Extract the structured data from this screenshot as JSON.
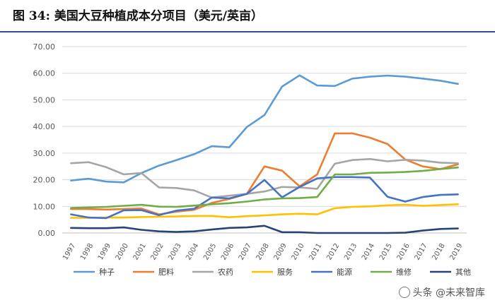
{
  "title": "图  34: 美国大豆种植成本分项目（美元/英亩）",
  "watermark": "头条 @未来智库",
  "chart_data": {
    "type": "line",
    "x": [
      "1997",
      "1998",
      "1999",
      "2000",
      "2001",
      "2002",
      "2003",
      "2004",
      "2005",
      "2006",
      "2007",
      "2008",
      "2009",
      "2010",
      "2011",
      "2012",
      "2013",
      "2014",
      "2015",
      "2016",
      "2017",
      "2018",
      "2019"
    ],
    "ylim": [
      0,
      70
    ],
    "ytick_labels": [
      "0.00",
      "10.00",
      "20.00",
      "30.00",
      "40.00",
      "50.00",
      "60.00",
      "70.00"
    ],
    "grid": true,
    "legend_position": "bottom",
    "series": [
      {
        "name": "种子",
        "color": "#5b9bd5",
        "values": [
          19.7,
          20.4,
          19.3,
          19.0,
          22.5,
          25.3,
          27.4,
          29.6,
          32.6,
          32.2,
          39.8,
          44.3,
          55.0,
          59.2,
          55.4,
          55.2,
          58.0,
          58.7,
          59.1,
          58.7,
          58.0,
          57.2,
          56.0
        ]
      },
      {
        "name": "肥料",
        "color": "#ed7d31",
        "values": [
          9.0,
          9.0,
          8.8,
          9.0,
          9.2,
          7.0,
          8.0,
          8.7,
          11.3,
          12.8,
          14.7,
          25.0,
          23.4,
          17.5,
          22.0,
          37.4,
          37.4,
          35.8,
          33.4,
          27.6,
          25.0,
          24.0,
          25.8
        ]
      },
      {
        "name": "农药",
        "color": "#a5a5a5",
        "values": [
          26.2,
          26.6,
          24.7,
          22.0,
          22.5,
          17.1,
          16.9,
          16.0,
          13.3,
          14.0,
          14.7,
          15.6,
          17.3,
          17.1,
          16.6,
          26.0,
          27.4,
          27.8,
          26.9,
          27.5,
          27.2,
          26.4,
          26.2
        ]
      },
      {
        "name": "服务",
        "color": "#ffc000",
        "values": [
          5.7,
          5.7,
          5.8,
          5.8,
          6.0,
          6.1,
          6.2,
          6.4,
          6.4,
          5.9,
          6.3,
          6.6,
          7.0,
          7.2,
          7.0,
          9.3,
          9.8,
          10.0,
          10.4,
          10.6,
          10.2,
          10.5,
          10.8
        ]
      },
      {
        "name": "能源",
        "color": "#4472c4",
        "values": [
          7.0,
          5.8,
          5.6,
          8.5,
          8.6,
          6.7,
          8.4,
          9.1,
          13.3,
          13.0,
          14.7,
          19.9,
          13.4,
          17.3,
          20.5,
          21.0,
          21.0,
          20.8,
          13.6,
          11.8,
          13.5,
          14.3,
          14.5
        ]
      },
      {
        "name": "维修",
        "color": "#70ad47",
        "values": [
          9.4,
          9.6,
          9.8,
          10.2,
          10.6,
          9.9,
          9.8,
          10.3,
          10.8,
          11.2,
          11.8,
          12.6,
          13.0,
          13.1,
          13.5,
          22.0,
          22.0,
          22.6,
          22.7,
          22.9,
          23.3,
          24.0,
          24.6
        ]
      },
      {
        "name": "其他",
        "color": "#264478",
        "values": [
          1.9,
          1.8,
          1.8,
          2.1,
          1.2,
          0.6,
          0.4,
          0.6,
          1.3,
          1.9,
          2.1,
          2.7,
          0.3,
          0.3,
          0.0,
          0.0,
          0.0,
          0.0,
          0.0,
          0.1,
          0.9,
          1.5,
          1.7
        ]
      }
    ]
  }
}
